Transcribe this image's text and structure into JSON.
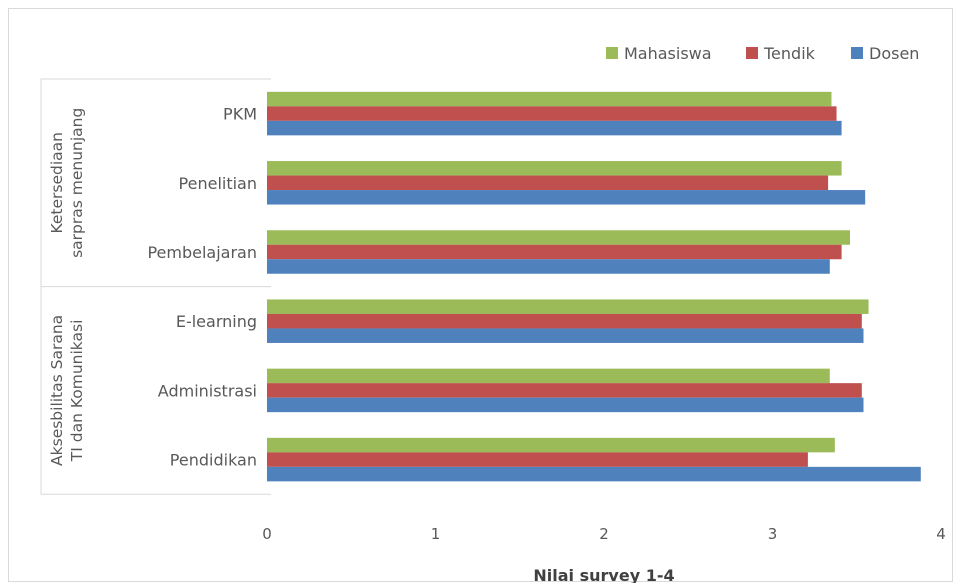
{
  "chart_data": {
    "type": "bar",
    "orientation": "horizontal",
    "xlabel": "Nilai survey 1-4",
    "xlim": [
      0,
      4
    ],
    "xticks": [
      "0",
      "1",
      "2",
      "3",
      "4"
    ],
    "legend_position": "top-right",
    "categories": [
      "PKM",
      "Penelitian",
      "Pembelajaran",
      "E-learning",
      "Administrasi",
      "Pendidikan"
    ],
    "groups": [
      {
        "label_lines": [
          "Ketersediaan",
          "sarpras menunjang"
        ],
        "categories": [
          "PKM",
          "Penelitian",
          "Pembelajaran"
        ]
      },
      {
        "label_lines": [
          "Aksesbilitas Sarana",
          "TI dan Komunikasi"
        ],
        "categories": [
          "E-learning",
          "Administrasi",
          "Pendidikan"
        ]
      }
    ],
    "series": [
      {
        "name": "Mahasiswa",
        "color": "#9bbb59",
        "values": [
          3.35,
          3.41,
          3.46,
          3.57,
          3.34,
          3.37
        ]
      },
      {
        "name": "Tendik",
        "color": "#c0504d",
        "values": [
          3.38,
          3.33,
          3.41,
          3.53,
          3.53,
          3.21
        ]
      },
      {
        "name": "Dosen",
        "color": "#4f81bd",
        "values": [
          3.41,
          3.55,
          3.34,
          3.54,
          3.54,
          3.88
        ]
      }
    ]
  }
}
